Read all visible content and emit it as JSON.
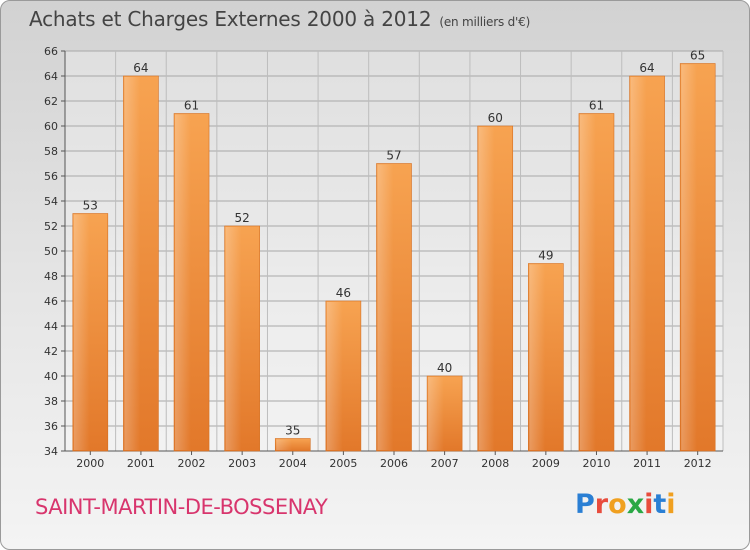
{
  "header": {
    "title": "Achats et Charges Externes 2000 à 2012",
    "subtitle": "(en milliers d'€)"
  },
  "footer": {
    "commune": "SAINT-MARTIN-DE-BOSSENAY",
    "logo_text": "Proxiti",
    "logo_colors": [
      "#2a7fd4",
      "#e84c3d",
      "#f0a020",
      "#2aa845",
      "#e84c3d",
      "#2a7fd4",
      "#f0a020"
    ]
  },
  "chart_data": {
    "type": "bar",
    "title": "Achats et Charges Externes 2000 à 2012",
    "subtitle": "(en milliers d'€)",
    "xlabel": "",
    "ylabel": "",
    "categories": [
      "2000",
      "2001",
      "2002",
      "2003",
      "2004",
      "2005",
      "2006",
      "2007",
      "2008",
      "2009",
      "2010",
      "2011",
      "2012"
    ],
    "values": [
      53,
      64,
      61,
      52,
      35,
      46,
      57,
      40,
      60,
      49,
      61,
      64,
      65
    ],
    "ylim": [
      34,
      66
    ],
    "yticks": [
      34,
      36,
      38,
      40,
      42,
      44,
      46,
      48,
      50,
      52,
      54,
      56,
      58,
      60,
      62,
      64,
      66
    ],
    "grid": true,
    "legend": "none",
    "bar_color": "#f0923a"
  }
}
